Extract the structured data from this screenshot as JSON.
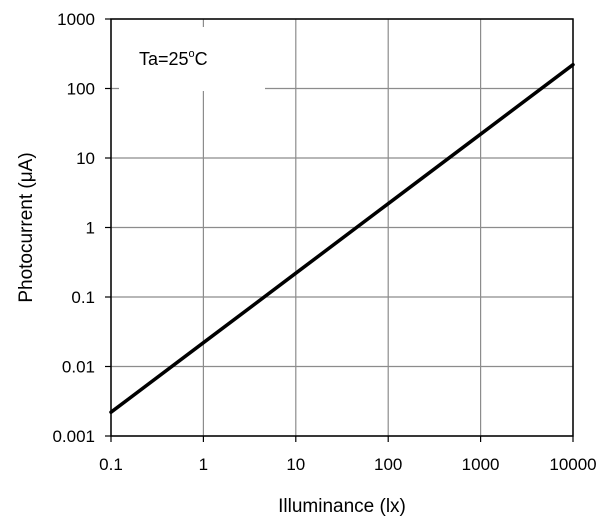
{
  "chart_data": {
    "type": "line",
    "title": "",
    "xlabel": "Illuminance (lx)",
    "ylabel": "Photocurrent (μA)",
    "x_scale": "log",
    "y_scale": "log",
    "xlim": [
      0.1,
      10000
    ],
    "ylim": [
      0.001,
      1000
    ],
    "x_ticks": [
      "0.1",
      "1",
      "10",
      "100",
      "1000",
      "10000"
    ],
    "y_ticks": [
      "0.001",
      "0.01",
      "0.1",
      "1",
      "10",
      "100",
      "1000"
    ],
    "grid": true,
    "legend": "none",
    "annotation": {
      "prefix": "Ta=25",
      "superscript": "o",
      "suffix": "C"
    },
    "series": [
      {
        "x": [
          0.1,
          1,
          10,
          100,
          1000,
          10000
        ],
        "y": [
          0.0022,
          0.022,
          0.22,
          2.2,
          22,
          220
        ],
        "color": "#000000"
      }
    ]
  }
}
